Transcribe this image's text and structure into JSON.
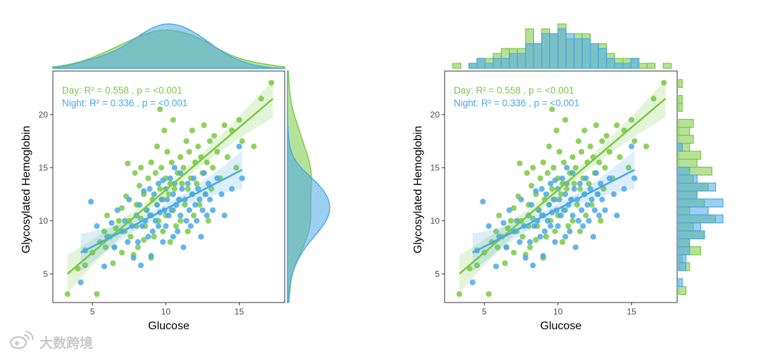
{
  "colors": {
    "day": "#7ac943",
    "night": "#4aa8e8",
    "frame": "#333333",
    "axis_text": "#4d4d4d"
  },
  "watermark": {
    "icon": "weibo-logo-icon",
    "text": "大数跨境"
  },
  "chart_data": [
    {
      "type": "scatter",
      "id": "left",
      "marginal": "density",
      "xlabel": "Glucose",
      "ylabel": "Glycosylated Hemoglobin",
      "xlim": [
        2.3,
        18.1
      ],
      "ylim": [
        2.3,
        24.1
      ],
      "xticks": [
        5,
        10,
        15
      ],
      "yticks": [
        5,
        10,
        15,
        20
      ],
      "grid": false,
      "annotations": [
        {
          "series": "Day",
          "text": "Day: R² = 0.558 , p = <0.001"
        },
        {
          "series": "Night",
          "text": "Night: R² = 0.336 , p = <0.001"
        }
      ],
      "series": [
        {
          "name": "Day",
          "color": "#7ac943",
          "fit": {
            "x0": 3.3,
            "y0": 5.0,
            "x1": 17.3,
            "y1": 21.5
          },
          "points": "day"
        },
        {
          "name": "Night",
          "color": "#4aa8e8",
          "fit": {
            "x0": 4.2,
            "y0": 7.0,
            "x1": 15.2,
            "y1": 14.8
          },
          "points": "night"
        }
      ]
    },
    {
      "type": "scatter",
      "id": "right",
      "marginal": "histogram",
      "xlabel": "Glucose",
      "ylabel": "Glycosylated Hemoglobin",
      "xlim": [
        2.3,
        18.1
      ],
      "ylim": [
        2.3,
        24.1
      ],
      "xticks": [
        5,
        10,
        15
      ],
      "yticks": [
        5,
        10,
        15,
        20
      ],
      "grid": false,
      "annotations": [
        {
          "series": "Day",
          "text": "Day: R² = 0.558 , p = <0.001"
        },
        {
          "series": "Night",
          "text": "Night: R² = 0.336 , p = <0.001"
        }
      ],
      "series": [
        {
          "name": "Day",
          "color": "#7ac943",
          "fit": {
            "x0": 3.3,
            "y0": 5.0,
            "x1": 17.3,
            "y1": 21.5
          },
          "points": "day"
        },
        {
          "name": "Night",
          "color": "#4aa8e8",
          "fit": {
            "x0": 4.2,
            "y0": 7.0,
            "x1": 15.2,
            "y1": 14.8
          },
          "points": "night"
        }
      ]
    }
  ],
  "points": {
    "day": [
      [
        3.3,
        3.1
      ],
      [
        4.0,
        5.5
      ],
      [
        4.5,
        5.8
      ],
      [
        5.0,
        7.0
      ],
      [
        5.3,
        3.1
      ],
      [
        5.5,
        8.0
      ],
      [
        5.8,
        9.0
      ],
      [
        5.9,
        7.5
      ],
      [
        6.0,
        10.5
      ],
      [
        6.2,
        8.5
      ],
      [
        6.4,
        6.0
      ],
      [
        6.5,
        7.5
      ],
      [
        6.6,
        9.3
      ],
      [
        6.8,
        10.0
      ],
      [
        7.0,
        11.2
      ],
      [
        7.0,
        7.0
      ],
      [
        7.2,
        9.0
      ],
      [
        7.3,
        12.3
      ],
      [
        7.4,
        15.4
      ],
      [
        7.5,
        10.0
      ],
      [
        7.6,
        8.5
      ],
      [
        7.8,
        6.8
      ],
      [
        7.9,
        14.5
      ],
      [
        8.0,
        11.5
      ],
      [
        8.0,
        9.5
      ],
      [
        8.1,
        7.5
      ],
      [
        8.2,
        13.3
      ],
      [
        8.3,
        10.2
      ],
      [
        8.3,
        15.0
      ],
      [
        8.5,
        12.5
      ],
      [
        8.5,
        8.2
      ],
      [
        8.6,
        9.5
      ],
      [
        8.7,
        11.0
      ],
      [
        8.8,
        14.0
      ],
      [
        8.9,
        10.5
      ],
      [
        9.0,
        15.5
      ],
      [
        9.0,
        6.5
      ],
      [
        9.1,
        12.0
      ],
      [
        9.2,
        8.5
      ],
      [
        9.3,
        14.5
      ],
      [
        9.4,
        11.5
      ],
      [
        9.4,
        17.0
      ],
      [
        9.5,
        10.0
      ],
      [
        9.6,
        13.0
      ],
      [
        9.7,
        15.0
      ],
      [
        9.8,
        9.0
      ],
      [
        9.8,
        12.0
      ],
      [
        9.9,
        18.5
      ],
      [
        10.0,
        14.0
      ],
      [
        10.0,
        10.5
      ],
      [
        10.1,
        16.5
      ],
      [
        10.2,
        12.5
      ],
      [
        10.3,
        8.0
      ],
      [
        10.3,
        13.5
      ],
      [
        10.4,
        15.5
      ],
      [
        10.5,
        11.0
      ],
      [
        10.5,
        19.5
      ],
      [
        10.6,
        13.0
      ],
      [
        10.7,
        9.5
      ],
      [
        10.8,
        14.5
      ],
      [
        10.9,
        12.0
      ],
      [
        11.0,
        16.0
      ],
      [
        11.0,
        10.0
      ],
      [
        11.1,
        13.5
      ],
      [
        11.2,
        15.0
      ],
      [
        11.3,
        11.5
      ],
      [
        11.4,
        17.5
      ],
      [
        11.5,
        13.0
      ],
      [
        11.5,
        9.0
      ],
      [
        11.6,
        16.5
      ],
      [
        11.7,
        14.0
      ],
      [
        11.8,
        12.5
      ],
      [
        11.8,
        18.5
      ],
      [
        11.9,
        10.5
      ],
      [
        12.0,
        15.5
      ],
      [
        12.1,
        13.5
      ],
      [
        12.2,
        17.0
      ],
      [
        12.3,
        11.5
      ],
      [
        12.4,
        16.0
      ],
      [
        12.5,
        14.5
      ],
      [
        12.6,
        19.0
      ],
      [
        12.7,
        12.5
      ],
      [
        12.8,
        15.5
      ],
      [
        12.9,
        10.0
      ],
      [
        13.0,
        17.5
      ],
      [
        13.1,
        13.0
      ],
      [
        13.2,
        15.0
      ],
      [
        13.3,
        18.0
      ],
      [
        13.5,
        16.5
      ],
      [
        13.7,
        14.0
      ],
      [
        14.0,
        19.0
      ],
      [
        14.2,
        16.0
      ],
      [
        14.5,
        18.5
      ],
      [
        14.8,
        15.0
      ],
      [
        15.0,
        19.5
      ],
      [
        15.2,
        17.5
      ],
      [
        16.0,
        17.0
      ],
      [
        16.5,
        21.5
      ],
      [
        17.2,
        23.0
      ],
      [
        9.6,
        20.5
      ]
    ],
    "night": [
      [
        4.2,
        4.2
      ],
      [
        4.5,
        7.2
      ],
      [
        4.9,
        11.8
      ],
      [
        5.3,
        9.5
      ],
      [
        5.8,
        5.7
      ],
      [
        6.0,
        8.5
      ],
      [
        6.3,
        9.8
      ],
      [
        6.5,
        7.5
      ],
      [
        6.7,
        11.0
      ],
      [
        7.0,
        9.0
      ],
      [
        7.2,
        10.0
      ],
      [
        7.4,
        8.0
      ],
      [
        7.5,
        12.0
      ],
      [
        7.7,
        9.5
      ],
      [
        7.8,
        6.5
      ],
      [
        8.0,
        10.5
      ],
      [
        8.1,
        8.0
      ],
      [
        8.2,
        11.5
      ],
      [
        8.3,
        5.8
      ],
      [
        8.4,
        9.5
      ],
      [
        8.5,
        12.8
      ],
      [
        8.6,
        10.0
      ],
      [
        8.7,
        11.0
      ],
      [
        8.8,
        8.5
      ],
      [
        8.9,
        13.0
      ],
      [
        9.0,
        10.5
      ],
      [
        9.0,
        6.7
      ],
      [
        9.1,
        9.0
      ],
      [
        9.2,
        12.5
      ],
      [
        9.3,
        10.0
      ],
      [
        9.4,
        11.5
      ],
      [
        9.5,
        13.5
      ],
      [
        9.5,
        9.5
      ],
      [
        9.6,
        10.8
      ],
      [
        9.7,
        12.0
      ],
      [
        9.8,
        8.0
      ],
      [
        9.9,
        11.0
      ],
      [
        10.0,
        13.0
      ],
      [
        10.0,
        9.5
      ],
      [
        10.1,
        12.0
      ],
      [
        10.2,
        10.5
      ],
      [
        10.3,
        14.0
      ],
      [
        10.4,
        11.0
      ],
      [
        10.5,
        12.5
      ],
      [
        10.5,
        8.5
      ],
      [
        10.6,
        13.5
      ],
      [
        10.7,
        11.5
      ],
      [
        10.8,
        9.0
      ],
      [
        10.9,
        12.0
      ],
      [
        11.0,
        14.5
      ],
      [
        11.0,
        10.5
      ],
      [
        11.1,
        13.0
      ],
      [
        11.2,
        7.5
      ],
      [
        11.3,
        12.0
      ],
      [
        11.4,
        10.0
      ],
      [
        11.5,
        13.5
      ],
      [
        11.6,
        11.0
      ],
      [
        11.7,
        9.5
      ],
      [
        11.8,
        12.5
      ],
      [
        11.9,
        14.0
      ],
      [
        12.0,
        11.5
      ],
      [
        12.1,
        10.0
      ],
      [
        12.2,
        13.0
      ],
      [
        12.3,
        12.0
      ],
      [
        12.4,
        8.5
      ],
      [
        12.5,
        11.0
      ],
      [
        12.6,
        14.5
      ],
      [
        12.7,
        12.5
      ],
      [
        12.8,
        10.5
      ],
      [
        12.9,
        13.5
      ],
      [
        13.0,
        12.0
      ],
      [
        13.2,
        11.0
      ],
      [
        13.5,
        14.0
      ],
      [
        13.8,
        12.5
      ],
      [
        14.0,
        10.5
      ],
      [
        14.5,
        13.0
      ],
      [
        15.0,
        17.0
      ],
      [
        15.2,
        14.0
      ],
      [
        9.8,
        13.8
      ],
      [
        10.6,
        15.0
      ]
    ]
  }
}
